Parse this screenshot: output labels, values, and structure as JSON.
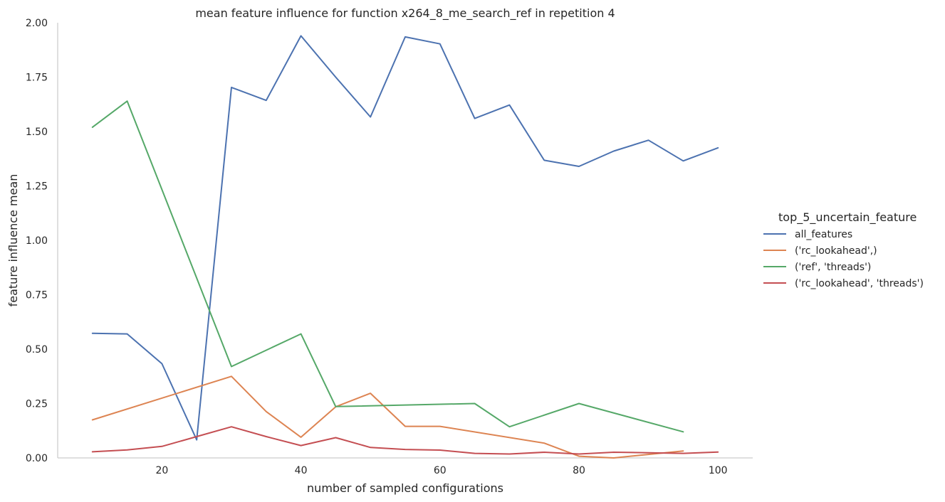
{
  "chart_data": {
    "type": "line",
    "title": "mean feature influence for function x264_8_me_search_ref in repetition 4",
    "xlabel": "number of sampled configurations",
    "ylabel": "feature influence mean",
    "xlim": [
      5,
      105
    ],
    "ylim": [
      0,
      2.0
    ],
    "xticks": [
      20,
      40,
      60,
      80,
      100
    ],
    "yticks": [
      0.0,
      0.25,
      0.5,
      0.75,
      1.0,
      1.25,
      1.5,
      1.75,
      2.0
    ],
    "xtick_labels": [
      "20",
      "40",
      "60",
      "80",
      "100"
    ],
    "ytick_labels": [
      "0.00",
      "0.25",
      "0.50",
      "0.75",
      "1.00",
      "1.25",
      "1.50",
      "1.75",
      "2.00"
    ],
    "grid": false,
    "legend": {
      "title": "top_5_uncertain_feature",
      "placement": "right"
    },
    "series": [
      {
        "name": "all_features",
        "color": "#4c72b0",
        "x": [
          10,
          15,
          20,
          25,
          30,
          35,
          40,
          45,
          50,
          55,
          60,
          65,
          70,
          75,
          80,
          85,
          90,
          95,
          100
        ],
        "values": [
          0.573,
          0.57,
          0.433,
          0.083,
          1.703,
          1.643,
          1.94,
          1.75,
          1.567,
          1.935,
          1.903,
          1.56,
          1.622,
          1.368,
          1.34,
          1.41,
          1.46,
          1.365,
          1.425
        ]
      },
      {
        "name": "('rc_lookahead',)",
        "color": "#dd8452",
        "x": [
          10,
          30,
          35,
          40,
          45,
          50,
          55,
          60,
          75,
          80,
          85,
          95
        ],
        "values": [
          0.175,
          0.375,
          0.213,
          0.095,
          0.235,
          0.297,
          0.145,
          0.145,
          0.068,
          0.008,
          0.0,
          0.032
        ]
      },
      {
        "name": "('ref', 'threads')",
        "color": "#55a868",
        "x": [
          10,
          15,
          30,
          40,
          45,
          65,
          70,
          80,
          95
        ],
        "values": [
          1.52,
          1.64,
          0.42,
          0.57,
          0.236,
          0.25,
          0.143,
          0.25,
          0.12
        ]
      },
      {
        "name": "('rc_lookahead', 'threads')",
        "color": "#c44e52",
        "x": [
          10,
          15,
          20,
          25,
          30,
          35,
          40,
          45,
          50,
          55,
          60,
          65,
          70,
          75,
          80,
          85,
          90,
          95,
          100
        ],
        "values": [
          0.028,
          0.037,
          0.053,
          0.098,
          0.143,
          0.098,
          0.057,
          0.093,
          0.048,
          0.039,
          0.036,
          0.021,
          0.018,
          0.026,
          0.018,
          0.026,
          0.024,
          0.021,
          0.027
        ]
      }
    ]
  }
}
